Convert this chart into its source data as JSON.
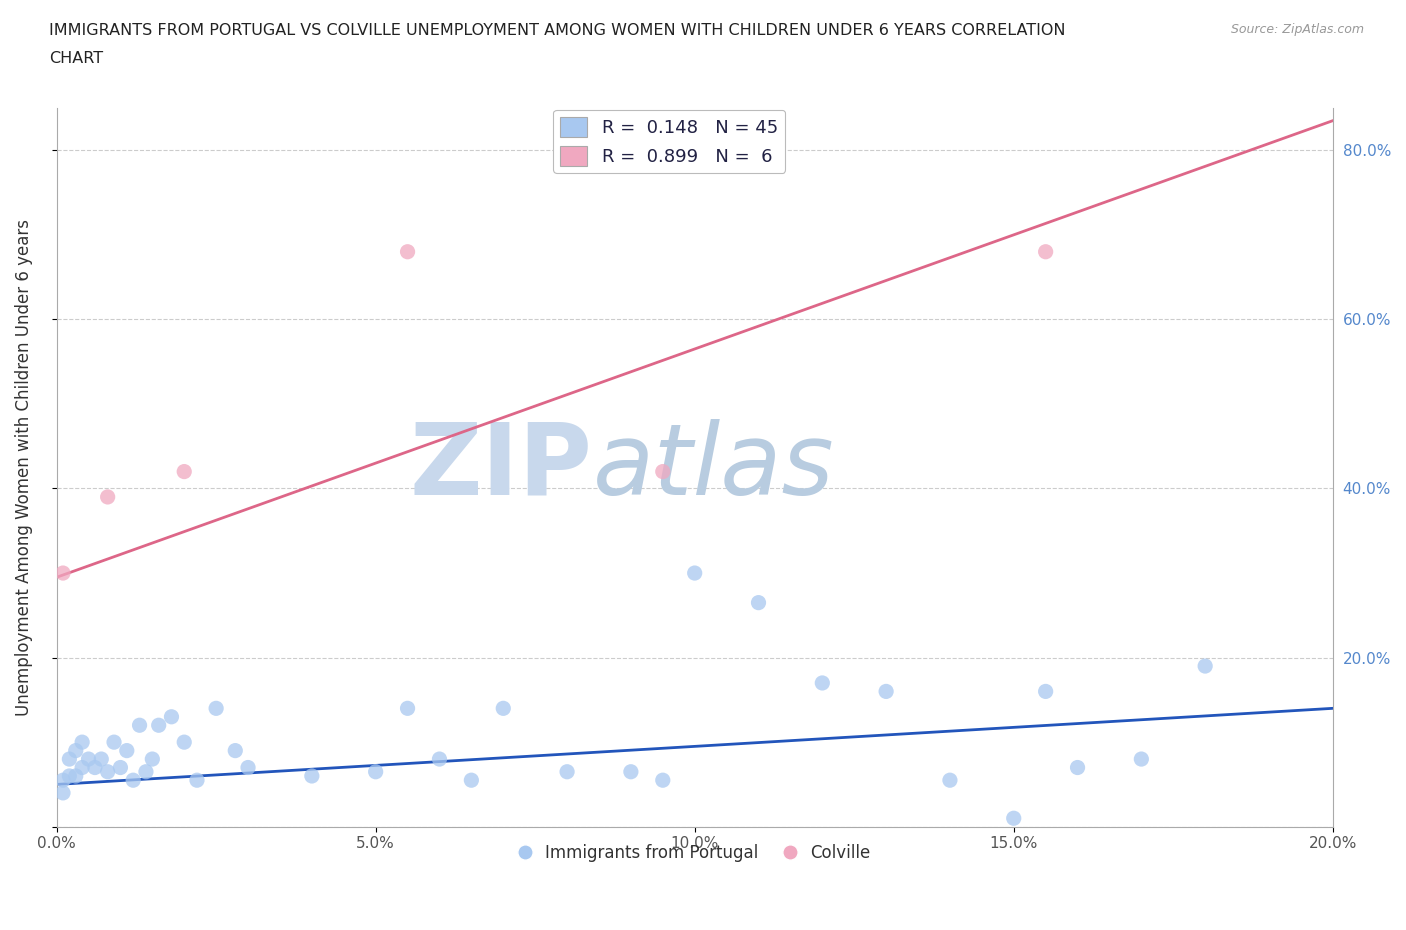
{
  "title_line1": "IMMIGRANTS FROM PORTUGAL VS COLVILLE UNEMPLOYMENT AMONG WOMEN WITH CHILDREN UNDER 6 YEARS CORRELATION",
  "title_line2": "CHART",
  "source": "Source: ZipAtlas.com",
  "ylabel": "Unemployment Among Women with Children Under 6 years",
  "xlim": [
    0.0,
    0.2
  ],
  "ylim": [
    0.0,
    0.85
  ],
  "xticks": [
    0.0,
    0.05,
    0.1,
    0.15,
    0.2
  ],
  "yticks": [
    0.0,
    0.2,
    0.4,
    0.6,
    0.8
  ],
  "xtick_labels": [
    "0.0%",
    "5.0%",
    "10.0%",
    "15.0%",
    "20.0%"
  ],
  "right_ytick_labels": [
    "",
    "20.0%",
    "40.0%",
    "60.0%",
    "80.0%"
  ],
  "legend_r_labels": [
    "R =  0.148   N = 45",
    "R =  0.899   N =  6"
  ],
  "bottom_legend_labels": [
    "Immigrants from Portugal",
    "Colville"
  ],
  "blue_scatter_x": [
    0.001,
    0.001,
    0.002,
    0.002,
    0.003,
    0.003,
    0.004,
    0.004,
    0.005,
    0.006,
    0.007,
    0.008,
    0.009,
    0.01,
    0.011,
    0.012,
    0.013,
    0.014,
    0.015,
    0.016,
    0.018,
    0.02,
    0.022,
    0.025,
    0.028,
    0.03,
    0.04,
    0.05,
    0.055,
    0.06,
    0.065,
    0.07,
    0.08,
    0.09,
    0.095,
    0.1,
    0.11,
    0.12,
    0.13,
    0.14,
    0.15,
    0.155,
    0.16,
    0.17,
    0.18
  ],
  "blue_scatter_y": [
    0.04,
    0.055,
    0.06,
    0.08,
    0.06,
    0.09,
    0.07,
    0.1,
    0.08,
    0.07,
    0.08,
    0.065,
    0.1,
    0.07,
    0.09,
    0.055,
    0.12,
    0.065,
    0.08,
    0.12,
    0.13,
    0.1,
    0.055,
    0.14,
    0.09,
    0.07,
    0.06,
    0.065,
    0.14,
    0.08,
    0.055,
    0.14,
    0.065,
    0.065,
    0.055,
    0.3,
    0.265,
    0.17,
    0.16,
    0.055,
    0.01,
    0.16,
    0.07,
    0.08,
    0.19
  ],
  "pink_scatter_x": [
    0.001,
    0.008,
    0.02,
    0.055,
    0.095,
    0.155
  ],
  "pink_scatter_y": [
    0.3,
    0.39,
    0.42,
    0.68,
    0.42,
    0.68
  ],
  "blue_line_x": [
    0.0,
    0.2
  ],
  "blue_line_y": [
    0.05,
    0.14
  ],
  "pink_line_x": [
    0.0,
    0.2
  ],
  "pink_line_y": [
    0.295,
    0.835
  ],
  "blue_scatter_color": "#a8c8f0",
  "pink_scatter_color": "#f0a8c0",
  "blue_line_color": "#2255bb",
  "pink_line_color": "#dd6688",
  "scatter_size": 120,
  "background_color": "#ffffff",
  "grid_color": "#cccccc",
  "watermark_zip": "ZIP",
  "watermark_atlas": "atlas",
  "watermark_color_zip": "#c8d8ec",
  "watermark_color_atlas": "#b8cce0",
  "legend_box_color_blue": "#a8c8f0",
  "legend_box_color_pink": "#f0a8c0"
}
